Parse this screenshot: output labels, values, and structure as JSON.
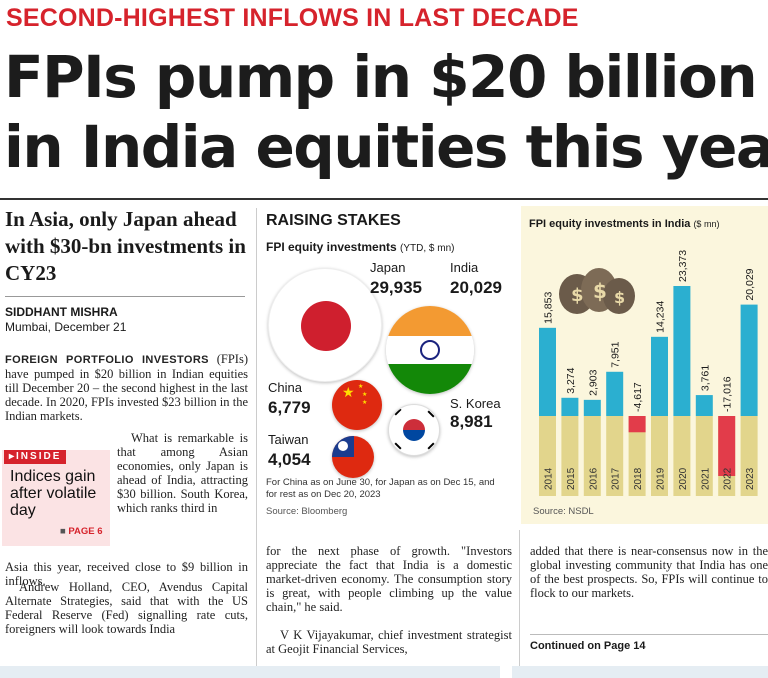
{
  "kicker": "SECOND-HIGHEST INFLOWS IN LAST DECADE",
  "headline": [
    "FPIs pump in $20 billion",
    "in India equities this year"
  ],
  "subhead": "In Asia, only Japan ahead with $30-bn investments in CY23",
  "byline": "SIDDHANT MISHRA",
  "dateline": "Mumbai, December 21",
  "body": {
    "lead_caps": "FOREIGN PORTFOLIO INVESTORS",
    "lead_rest": " (FPIs) have pumped in $20 billion in Indian equities till December 20 – the second highest in the last decade. In 2020, FPIs invested $23 billion in the Indian markets.",
    "p2": "What is remarkable is that among Asian economies, only Japan is ahead of India, attracting $30 billion. South Korea, which ranks third in",
    "p2_cont": "Asia this year, received close to $9 billion in inflows.",
    "p3": "Andrew Holland, CEO, Avendus Capital Alternate Strategies, said that with the US Federal Reserve (Fed) signalling rate cuts, foreigners will look towards India",
    "p4": "for the next phase of growth. \"Investors appreciate the fact that India is a domestic market-driven economy. The consumption story is great, with people climbing up the value chain,\" he said.",
    "p5": "V K Vijayakumar, chief investment strategist at Geojit Financial Services,",
    "p6": "added that there is near-consensus now in the global investing community that India has one of the best prospects. So, FPIs will continue to flock to our markets.",
    "continued": "Continued on Page 14"
  },
  "inside": {
    "tag": "INSIDE",
    "text": "Indices gain after volatile day",
    "page": "PAGE 6"
  },
  "graphic": {
    "section": "RAISING STAKES",
    "title": "FPI equity investments",
    "title_sub": "(YTD, $ mn)",
    "countries": [
      {
        "name": "Japan",
        "value": "29,935"
      },
      {
        "name": "India",
        "value": "20,029"
      },
      {
        "name": "China",
        "value": "6,779"
      },
      {
        "name": "S. Korea",
        "value": "8,981"
      },
      {
        "name": "Taiwan",
        "value": "4,054"
      }
    ],
    "note": "For China as on June 30, for Japan as on Dec 15, and for rest as on Dec 20, 2023",
    "source": "Source: Bloomberg",
    "colors": {
      "japan_red": "#cf1f2e",
      "india_saffron": "#f39a32",
      "india_green": "#138808",
      "china_red": "#de2910",
      "taiwan_blue": "#1a3c8f"
    }
  },
  "chart_data": {
    "type": "bar",
    "title": "FPI equity investments in India",
    "title_unit": "($ mn)",
    "categories": [
      "2014",
      "2015",
      "2016",
      "2017",
      "2018",
      "2019",
      "2020",
      "2021",
      "2022",
      "2023"
    ],
    "values": [
      15853,
      3274,
      2903,
      7951,
      -4617,
      14234,
      23373,
      3761,
      -17016,
      20029
    ],
    "labels": [
      "15,853",
      "3,274",
      "2,903",
      "7,951",
      "-4,617",
      "14,234",
      "23,373",
      "3,761",
      "-17,016",
      "20,029"
    ],
    "colors": {
      "positive": "#2bafd0",
      "negative": "#e23c4a",
      "band": "#e2d58c"
    },
    "source": "Source: NSDL"
  }
}
